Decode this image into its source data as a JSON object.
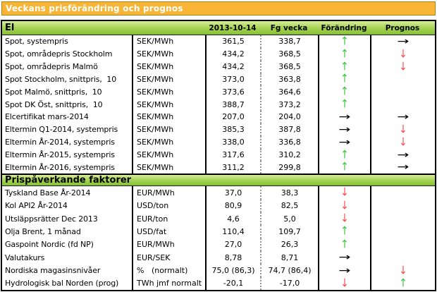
{
  "title": "Veckans prisförändring och prognos",
  "columns": {
    "date": "2013-10-14",
    "prev": "Fg vecka",
    "change": "Förändring",
    "forecast": "Prognos"
  },
  "arrows": {
    "up": "↑",
    "down": "↓",
    "right": "→"
  },
  "colors": {
    "title_bar_bg": "#F8B434",
    "section_bar_green": "#8CC63F",
    "arrow_up": "#3EC53E",
    "arrow_down": "#FB4B4B",
    "arrow_right": "#000000"
  },
  "sections": [
    {
      "name": "El",
      "rows": [
        {
          "label": "Spot, systempris",
          "unit": "SEK/MWh",
          "value": "361,5",
          "prev": "338,7",
          "change": "up",
          "forecast": "right"
        },
        {
          "label": "Spot, områdepris Stockholm",
          "unit": "SEK/MWh",
          "value": "434,2",
          "prev": "368,5",
          "change": "up",
          "forecast": "down"
        },
        {
          "label": "Spot, områdepris Malmö",
          "unit": "SEK/MWh",
          "value": "434,2",
          "prev": "368,5",
          "change": "up",
          "forecast": "down"
        },
        {
          "label": "Spot Stockholm, snittpris,  10",
          "unit": "SEK/MWh",
          "value": "373,0",
          "prev": "363,8",
          "change": "up",
          "forecast": ""
        },
        {
          "label": "Spot Malmö, snittpris,  10",
          "unit": "SEK/MWh",
          "value": "373,6",
          "prev": "364,6",
          "change": "up",
          "forecast": ""
        },
        {
          "label": "Spot DK Öst, snittpris,  10",
          "unit": "SEK/MWh",
          "value": "388,7",
          "prev": "373,2",
          "change": "up",
          "forecast": ""
        },
        {
          "label": "Elcertifikat mars-2014",
          "unit": "SEK/MWh",
          "value": "207,0",
          "prev": "204,0",
          "change": "right",
          "forecast": "right"
        },
        {
          "label": "Eltermin Q1-2014, systempris",
          "unit": "SEK/MWh",
          "value": "385,3",
          "prev": "387,8",
          "change": "right",
          "forecast": "down"
        },
        {
          "label": "Eltermin År-2014, systempris",
          "unit": "SEK/MWh",
          "value": "338,0",
          "prev": "336,8",
          "change": "right",
          "forecast": "down"
        },
        {
          "label": "Eltermin År-2015, systempris",
          "unit": "SEK/MWh",
          "value": "317,6",
          "prev": "310,2",
          "change": "up",
          "forecast": "right"
        },
        {
          "label": "Eltermin År-2016, systempris",
          "unit": "SEK/MWh",
          "value": "311,2",
          "prev": "299,8",
          "change": "up",
          "forecast": "right"
        }
      ]
    },
    {
      "name": "Prispåverkande faktorer",
      "rows": [
        {
          "label": "Tyskland Base År-2014",
          "unit": "EUR/MWh",
          "value": "37,0",
          "prev": "38,3",
          "change": "down",
          "forecast": ""
        },
        {
          "label": "Kol API2 År-2014",
          "unit": "USD/ton",
          "value": "80,9",
          "prev": "82,5",
          "change": "down",
          "forecast": ""
        },
        {
          "label": "Utsläppsrätter Dec 2013",
          "unit": "EUR/ton",
          "value": "4,6",
          "prev": "5,0",
          "change": "down",
          "forecast": ""
        },
        {
          "label": "Olja Brent, 1 månad",
          "unit": "USD/fat",
          "value": "110,4",
          "prev": "109,7",
          "change": "up",
          "forecast": ""
        },
        {
          "label": "Gaspoint Nordic (fd NP)",
          "unit": "EUR/MWh",
          "value": "27,0",
          "prev": "26,3",
          "change": "up",
          "forecast": ""
        },
        {
          "label": "Valutakurs",
          "unit": "EUR/SEK",
          "value": "8,78",
          "prev": "8,71",
          "change": "right",
          "forecast": ""
        },
        {
          "label": "Nordiska magasinsnivåer",
          "unit": "%   (normalt)",
          "value": "75,0 (86,3)",
          "prev": "74,7 (86,4)",
          "change": "right",
          "forecast": "down"
        },
        {
          "label": "Hydrologisk bal Norden (prog)",
          "unit": "TWh jmf normalt",
          "value": "-20,1",
          "prev": "-17,0",
          "change": "down",
          "forecast": "up"
        }
      ]
    }
  ]
}
